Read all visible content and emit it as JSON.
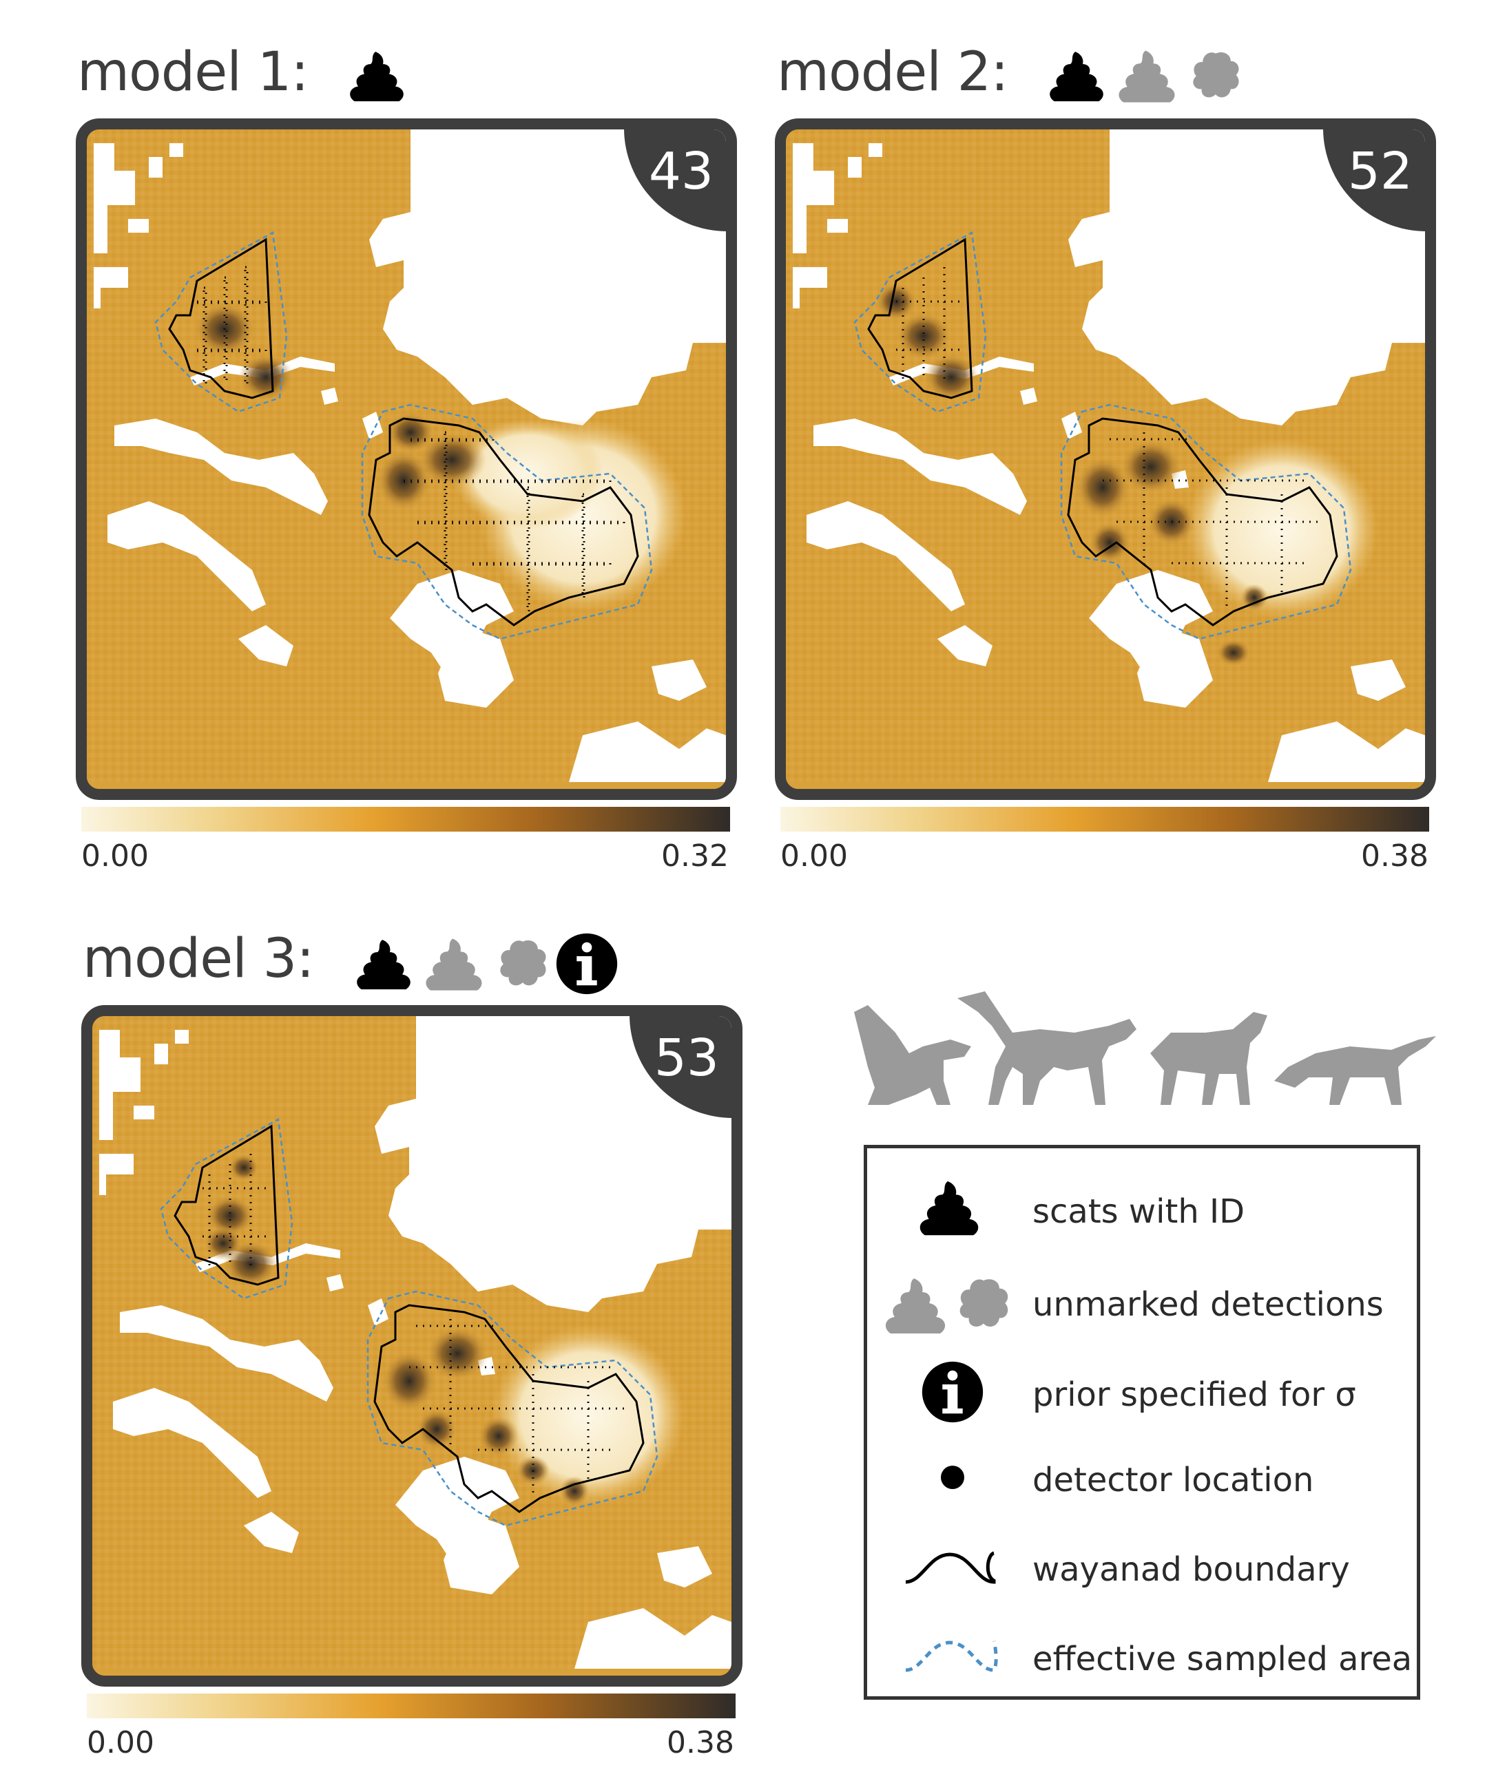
{
  "panels": [
    {
      "title": "model 1:",
      "icons": [
        "scat-black-icon"
      ],
      "badge": "43",
      "scale_min": "0.00",
      "scale_max": "0.32"
    },
    {
      "title": "model 2:",
      "icons": [
        "scat-black-icon",
        "scat-grey-icon",
        "paw-grey-icon"
      ],
      "badge": "52",
      "scale_min": "0.00",
      "scale_max": "0.38"
    },
    {
      "title": "model 3:",
      "icons": [
        "scat-black-icon",
        "scat-grey-icon",
        "paw-grey-icon",
        "info-icon"
      ],
      "badge": "53",
      "scale_min": "0.00",
      "scale_max": "0.38"
    }
  ],
  "legend": {
    "items": [
      {
        "icon": "scat-black-icon",
        "label": "scats with ID"
      },
      {
        "icon": "scat-grey-paw-icon",
        "label": "unmarked detections"
      },
      {
        "icon": "info-icon",
        "label": "prior specified for σ"
      },
      {
        "icon": "dot-icon",
        "label": "detector location"
      },
      {
        "icon": "wave-solid-icon",
        "label": "wayanad boundary"
      },
      {
        "icon": "wave-dashed-icon",
        "label": "effective sampled area"
      }
    ]
  },
  "colors": {
    "background": "#d9a13a",
    "frame": "#3e3e3e",
    "boundary": "#000000",
    "sampled_area": "#4a90c8",
    "silhouette": "#9a9a9a"
  }
}
